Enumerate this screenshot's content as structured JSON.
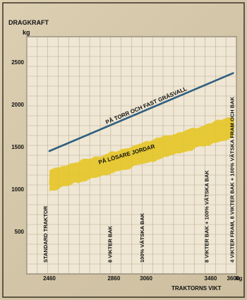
{
  "chart_data": {
    "type": "line",
    "ylabel": "DRAGKRAFT",
    "yunit": "kg",
    "xlabel": "TRAKTORNS VIKT",
    "xunit": "kg",
    "xlim": [
      2320,
      3620
    ],
    "ylim": [
      0,
      2800
    ],
    "yticks": [
      500,
      1000,
      1500,
      2000,
      2500
    ],
    "xticks": [
      {
        "value": 2460,
        "label": "2460"
      },
      {
        "value": 2860,
        "label": "2860"
      },
      {
        "value": 3060,
        "label": "3060"
      },
      {
        "value": 3460,
        "label": "3460"
      },
      {
        "value": 3600,
        "label": "3600"
      }
    ],
    "grid": true,
    "series": [
      {
        "name": "PÅ TORR OCH FAST GRÄSVALL",
        "x": [
          2460,
          3600
        ],
        "y": [
          1450,
          2370
        ],
        "color": "#2f5f80",
        "style": "line"
      },
      {
        "name": "PÅ LÖSARE JORDAR",
        "x": [
          2460,
          3600
        ],
        "y": [
          1100,
          1730
        ],
        "color": "#e6c622",
        "style": "band",
        "band_width": 250
      }
    ],
    "annotations": [
      {
        "x": 2460,
        "text": "STANDARD TRAKTOR"
      },
      {
        "x": 2860,
        "text": "8 VIKTER BAK"
      },
      {
        "x": 3060,
        "text": "100% VÄTSKA BAK"
      },
      {
        "x": 3460,
        "text": "8 VIKTER BAK + 100% VÄTSKA BAK"
      },
      {
        "x": 3600,
        "text": "4 VIKTER FRAM, 8 VIKTER BAK + 100% VÄTSKA FRAM OCH BAK"
      }
    ]
  }
}
